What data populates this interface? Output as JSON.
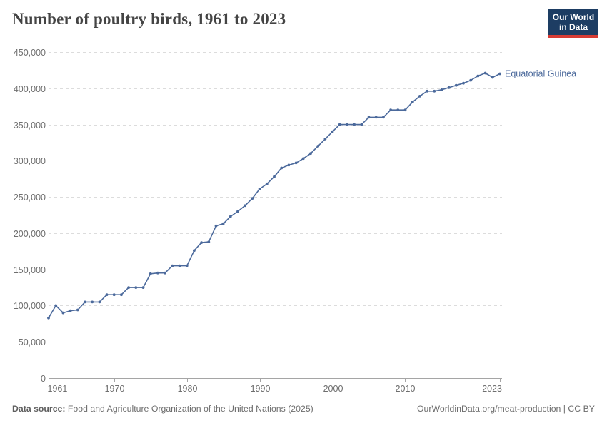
{
  "header": {
    "title": "Number of poultry birds, 1961 to 2023",
    "logo": {
      "line1": "Our World",
      "line2": "in Data",
      "bg_color": "#1d3d63",
      "bar_color": "#d73c34"
    }
  },
  "footer": {
    "source_label": "Data source:",
    "source_text": "Food and Agriculture Organization of the United Nations (2025)",
    "right_text": "OurWorldinData.org/meat-production | CC BY"
  },
  "colors": {
    "line": "#4c6a9c",
    "entity_label": "#4c6a9c",
    "grid": "#dcdcdc",
    "axis": "#a5a5a5",
    "tick_text": "#6e6e6e"
  },
  "chart_data": {
    "type": "line",
    "title": "Number of poultry birds, 1961 to 2023",
    "entity": "Equatorial Guinea",
    "xlabel": "",
    "ylabel": "",
    "xlim": [
      1961,
      2023
    ],
    "ylim": [
      0,
      450000
    ],
    "grid": "horizontal-dashed",
    "legend_position": "right-of-line",
    "x_ticks": [
      1961,
      1970,
      1980,
      1990,
      2000,
      2010,
      2023
    ],
    "x_tick_labels": [
      "1961",
      "1970",
      "1980",
      "1990",
      "2000",
      "2010",
      "2023"
    ],
    "y_ticks": [
      0,
      50000,
      100000,
      150000,
      200000,
      250000,
      300000,
      350000,
      400000,
      450000
    ],
    "y_tick_labels": [
      "0",
      "50,000",
      "100,000",
      "150,000",
      "200,000",
      "250,000",
      "300,000",
      "350,000",
      "400,000",
      "450,000"
    ],
    "x": [
      1961,
      1962,
      1963,
      1964,
      1965,
      1966,
      1967,
      1968,
      1969,
      1970,
      1971,
      1972,
      1973,
      1974,
      1975,
      1976,
      1977,
      1978,
      1979,
      1980,
      1981,
      1982,
      1983,
      1984,
      1985,
      1986,
      1987,
      1988,
      1989,
      1990,
      1991,
      1992,
      1993,
      1994,
      1995,
      1996,
      1997,
      1998,
      1999,
      2000,
      2001,
      2002,
      2003,
      2004,
      2005,
      2006,
      2007,
      2008,
      2009,
      2010,
      2011,
      2012,
      2013,
      2014,
      2015,
      2016,
      2017,
      2018,
      2019,
      2020,
      2021,
      2022,
      2023
    ],
    "values": [
      83000,
      100000,
      90000,
      93000,
      94000,
      105000,
      105000,
      105000,
      115000,
      115000,
      115000,
      125000,
      125000,
      125000,
      144000,
      145000,
      145000,
      155000,
      155000,
      155000,
      176000,
      187000,
      188000,
      210000,
      213000,
      223000,
      230000,
      238000,
      248000,
      261000,
      268000,
      278000,
      290000,
      294000,
      297000,
      303000,
      310000,
      320000,
      330000,
      340000,
      350000,
      350000,
      350000,
      350000,
      360000,
      360000,
      360000,
      370000,
      370000,
      370000,
      381000,
      389000,
      396000,
      396000,
      398000,
      401000,
      404000,
      407000,
      411000,
      417000,
      421000,
      415000,
      420000
    ]
  }
}
